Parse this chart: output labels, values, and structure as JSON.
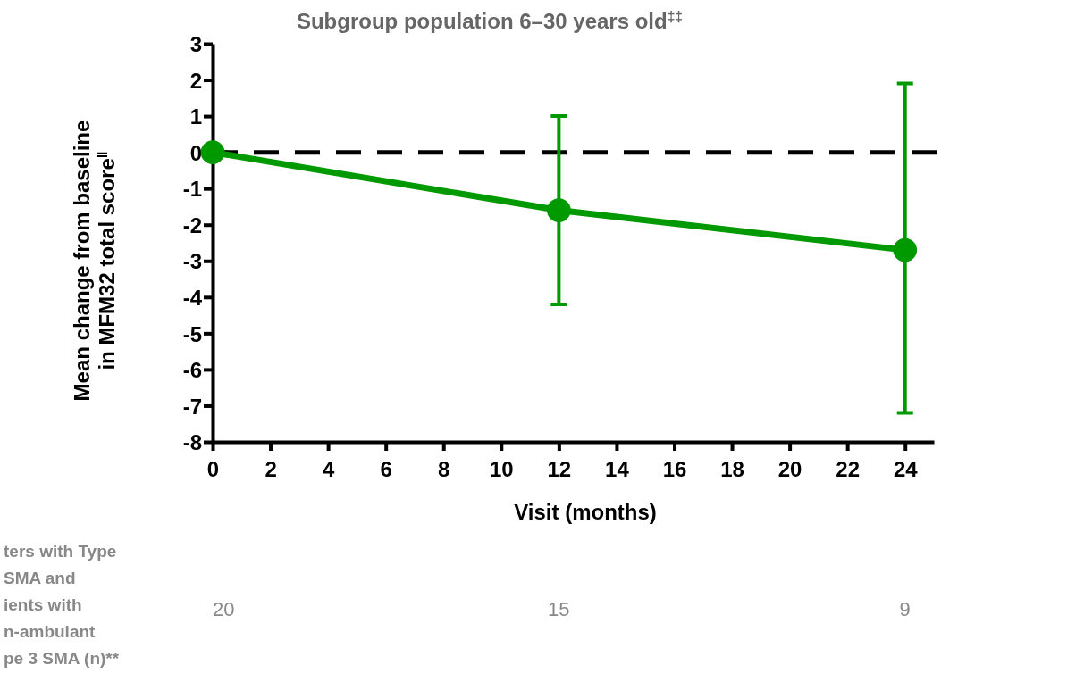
{
  "chart_data": {
    "type": "line",
    "title": "Subgroup population 6–30 years old$^{‡‡}$",
    "xlabel": "Visit (months)",
    "ylabel": "Mean change from baseline\nin MFM32 total score$^{‖}$",
    "x": [
      0,
      12,
      24
    ],
    "series": [
      {
        "color": "#009900",
        "values": [
          0,
          -1.6,
          -2.7
        ],
        "errors": [
          null,
          [
            -4.2,
            1.0
          ],
          [
            -7.2,
            1.9
          ]
        ]
      }
    ],
    "xlim": [
      0,
      25
    ],
    "xticks": [
      0,
      2,
      4,
      6,
      8,
      10,
      12,
      14,
      16,
      18,
      20,
      22,
      24
    ],
    "ylim": [
      -8,
      3
    ],
    "yticks": [
      3,
      2,
      1,
      0,
      -1,
      -2,
      -3,
      -4,
      -5,
      -6,
      -7,
      -8
    ],
    "marker": "circle",
    "line_style": "solid",
    "ref_lines": [
      {
        "axis": "y",
        "value": 0,
        "color": "#000000",
        "line_style": "dashed"
      }
    ],
    "annotations": [
      "ters with Type\nSMA and\nients with\nn-ambulant\npe 3 SMA (n)**",
      "20",
      "15",
      "9"
    ]
  }
}
